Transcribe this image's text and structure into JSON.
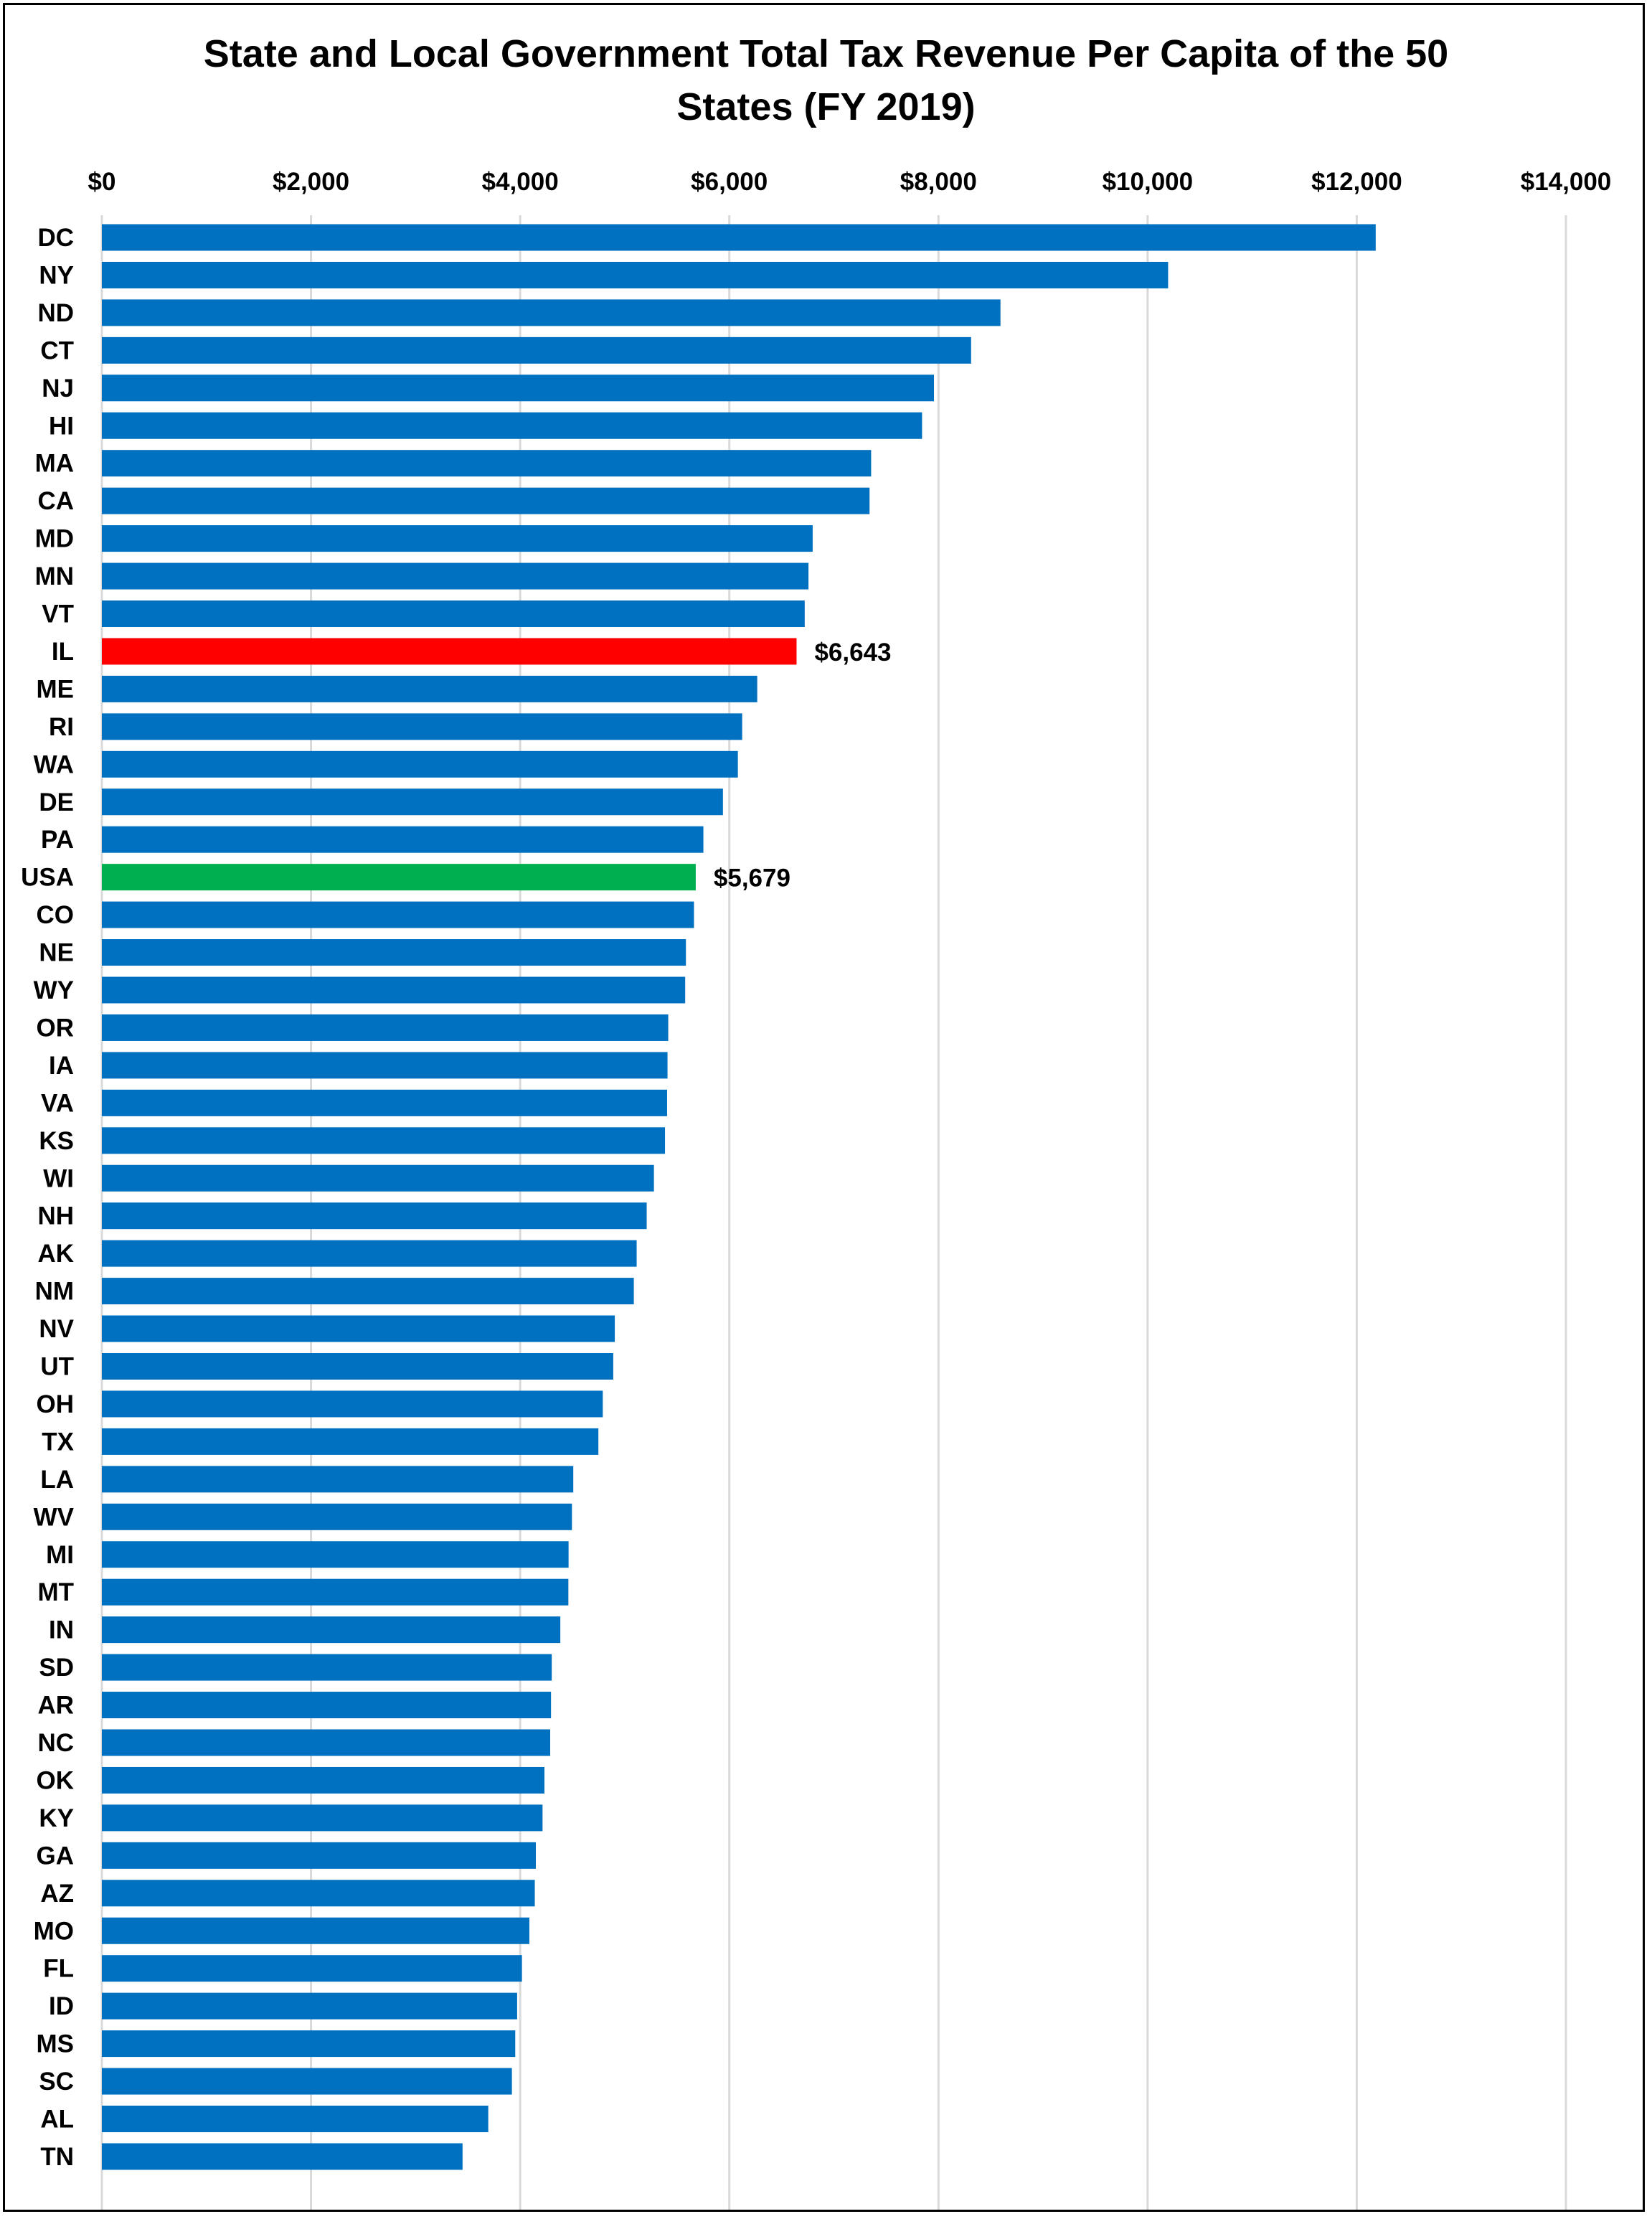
{
  "chart_data": {
    "type": "bar",
    "orientation": "horizontal",
    "title": "State and Local Government Total Tax Revenue Per Capita of the 50 States (FY 2019)",
    "title_lines": [
      "State and Local Government Total Tax Revenue Per Capita of the 50",
      "States (FY 2019)"
    ],
    "xlim": [
      0,
      14000
    ],
    "x_ticks": [
      0,
      2000,
      4000,
      6000,
      8000,
      10000,
      12000,
      14000
    ],
    "x_tick_labels": [
      "$0",
      "$2,000",
      "$4,000",
      "$6,000",
      "$8,000",
      "$10,000",
      "$12,000",
      "$14,000"
    ],
    "x_axis_position": "top",
    "grid": "vertical",
    "legend": "none",
    "categories": [
      "DC",
      "NY",
      "ND",
      "CT",
      "NJ",
      "HI",
      "MA",
      "CA",
      "MD",
      "MN",
      "VT",
      "IL",
      "ME",
      "RI",
      "WA",
      "DE",
      "PA",
      "USA",
      "CO",
      "NE",
      "WY",
      "OR",
      "IA",
      "VA",
      "KS",
      "WI",
      "NH",
      "AK",
      "NM",
      "NV",
      "UT",
      "OH",
      "TX",
      "LA",
      "WV",
      "MI",
      "MT",
      "IN",
      "SD",
      "AR",
      "NC",
      "OK",
      "KY",
      "GA",
      "AZ",
      "MO",
      "FL",
      "ID",
      "MS",
      "SC",
      "AL",
      "TN"
    ],
    "values": [
      12181,
      10196,
      8593,
      8312,
      7957,
      7843,
      7356,
      7341,
      6797,
      6757,
      6721,
      6643,
      6267,
      6123,
      6082,
      5939,
      5752,
      5679,
      5662,
      5585,
      5578,
      5416,
      5409,
      5405,
      5385,
      5279,
      5210,
      5114,
      5087,
      4905,
      4890,
      4790,
      4748,
      4508,
      4495,
      4463,
      4461,
      4384,
      4302,
      4295,
      4287,
      4232,
      4214,
      4150,
      4140,
      4088,
      4017,
      3971,
      3953,
      3921,
      3695,
      3449
    ],
    "colors": {
      "default": "#0070C0",
      "highlight_IL": "#FF0000",
      "highlight_USA": "#00B050"
    },
    "highlights": [
      {
        "category": "IL",
        "color": "#FF0000",
        "label": "$6,643"
      },
      {
        "category": "USA",
        "color": "#00B050",
        "label": "$5,679"
      }
    ]
  }
}
